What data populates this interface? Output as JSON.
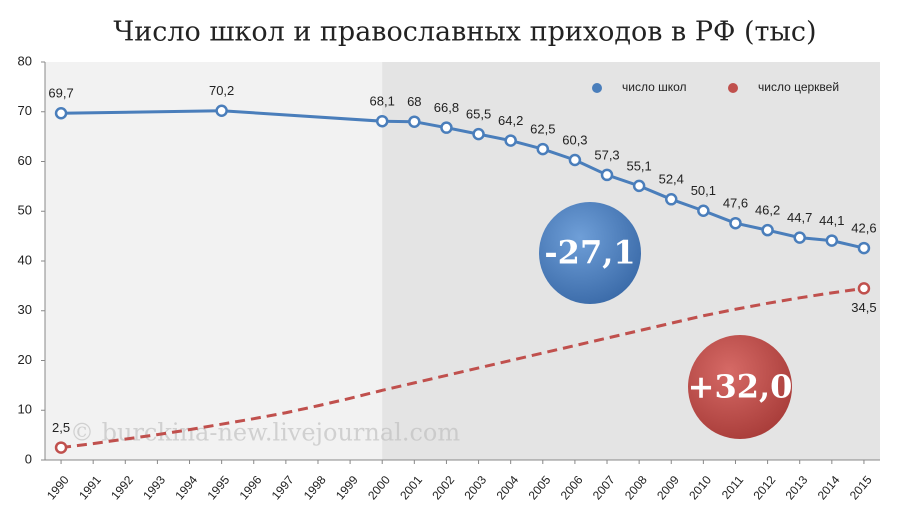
{
  "chart_data": {
    "type": "line",
    "title": "Число школ и православных приходов в РФ (тыс)",
    "xlim": [
      1989.5,
      2015.5
    ],
    "xticks": [
      1990,
      1991,
      1992,
      1993,
      1994,
      1995,
      1996,
      1997,
      1998,
      1999,
      2000,
      2001,
      2002,
      2003,
      2004,
      2005,
      2006,
      2007,
      2008,
      2009,
      2010,
      2011,
      2012,
      2013,
      2014,
      2015
    ],
    "ylim": [
      0,
      80
    ],
    "yticks": [
      0,
      10,
      20,
      30,
      40,
      50,
      60,
      70,
      80
    ],
    "highlight_from": 2000,
    "legend": "top-right",
    "series": [
      {
        "name": "число школ",
        "color": "#4a7ebb",
        "dash": false,
        "x": [
          1990,
          1995,
          2000,
          2001,
          2002,
          2003,
          2004,
          2005,
          2006,
          2007,
          2008,
          2009,
          2010,
          2011,
          2012,
          2013,
          2014,
          2015
        ],
        "values": [
          69.7,
          70.2,
          68.1,
          68,
          66.8,
          65.5,
          64.2,
          62.5,
          60.3,
          57.3,
          55.1,
          52.4,
          50.1,
          47.6,
          46.2,
          44.7,
          44.1,
          42.6
        ],
        "value_labels": [
          "69,7",
          "70,2",
          "68,1",
          "68",
          "66,8",
          "65,5",
          "64,2",
          "62,5",
          "60,3",
          "57,3",
          "55,1",
          "52,4",
          "50,1",
          "47,6",
          "46,2",
          "44,7",
          "44,1",
          "42,6"
        ]
      },
      {
        "name": "число церквей",
        "color": "#c0504d",
        "dash": true,
        "x": [
          1990,
          1991,
          1992,
          1993,
          1994,
          1995,
          1996,
          1997,
          1998,
          1999,
          2000,
          2001,
          2002,
          2003,
          2004,
          2005,
          2006,
          2007,
          2008,
          2009,
          2010,
          2011,
          2012,
          2013,
          2014,
          2015
        ],
        "values": [
          2.5,
          3.3,
          4.2,
          5.1,
          6.1,
          7.2,
          8.3,
          9.5,
          10.9,
          12.4,
          14.0,
          15.5,
          17.0,
          18.5,
          20.0,
          21.5,
          23.0,
          24.5,
          26.0,
          27.5,
          29.0,
          30.3,
          31.5,
          32.6,
          33.6,
          34.5
        ],
        "value_labels": [
          "2,5",
          null,
          null,
          null,
          null,
          null,
          null,
          null,
          null,
          null,
          null,
          null,
          null,
          null,
          null,
          null,
          null,
          null,
          null,
          null,
          null,
          null,
          null,
          null,
          null,
          "34,5"
        ]
      }
    ],
    "annotations": [
      {
        "text": "-27,1",
        "color": "#4a7ebb"
      },
      {
        "text": "+32,0",
        "color": "#c0504d"
      }
    ],
    "watermark": "© burckina-new.livejournal.com"
  }
}
